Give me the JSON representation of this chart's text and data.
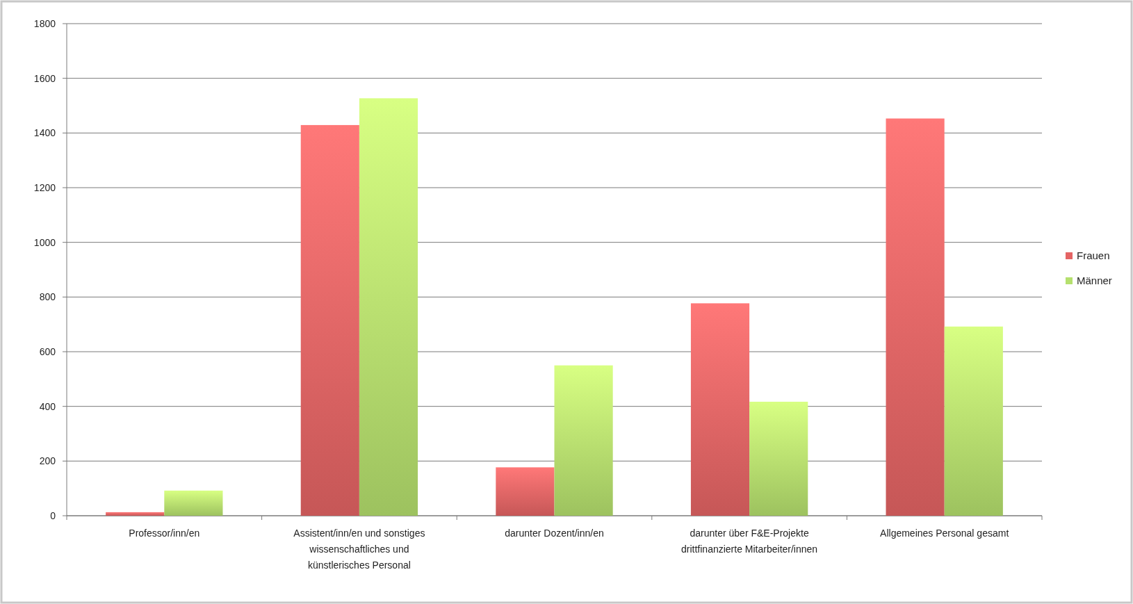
{
  "chart_data": {
    "type": "bar",
    "categories": [
      "Professor/inn/en",
      "Assistent/inn/en und sonstiges wissenschaftliches und künstlerisches Personal",
      "darunter Dozent/inn/en",
      "darunter über F&E-Projekte drittfinanzierte Mitarbeiter/innen",
      "Allgemeines Personal gesamt"
    ],
    "series": [
      {
        "name": "Frauen",
        "color": "#e46464",
        "values": [
          13,
          1429,
          177,
          777,
          1453
        ]
      },
      {
        "name": "Männer",
        "color": "#b5e06e",
        "values": [
          92,
          1527,
          550,
          417,
          692
        ]
      }
    ],
    "ylim": [
      0,
      1800
    ],
    "yticks": [
      0,
      200,
      400,
      600,
      800,
      1000,
      1200,
      1400,
      1600,
      1800
    ],
    "grid": "y",
    "legend": "right"
  }
}
